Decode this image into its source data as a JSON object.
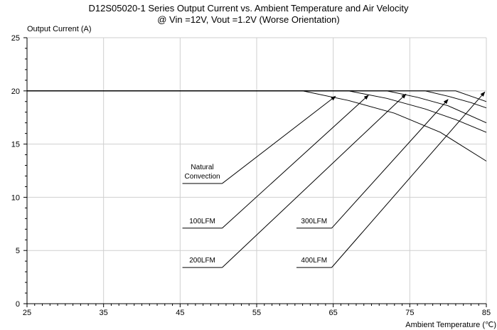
{
  "chart_data": {
    "type": "line",
    "title": "D12S05020-1 Series Output Current vs. Ambient Temperature and Air Velocity",
    "subtitle": "@ Vin =12V, Vout =1.2V (Worse Orientation)",
    "ylabel": "Output Current (A)",
    "xlabel": "Ambient Temperature (℃)",
    "xlim": [
      25,
      85
    ],
    "ylim": [
      0,
      25
    ],
    "x_ticks": [
      25,
      35,
      45,
      55,
      65,
      75,
      85
    ],
    "y_ticks": [
      0,
      5,
      10,
      15,
      20,
      25
    ],
    "grid": true,
    "series": [
      {
        "name": "Natural Convection",
        "points": [
          [
            25,
            20
          ],
          [
            61,
            20
          ],
          [
            67,
            19.1
          ],
          [
            73,
            17.9
          ],
          [
            79,
            16.1
          ],
          [
            85,
            13.4
          ]
        ]
      },
      {
        "name": "100LFM",
        "points": [
          [
            25,
            20
          ],
          [
            67,
            20
          ],
          [
            72,
            19.3
          ],
          [
            77,
            18.3
          ],
          [
            81,
            17.3
          ],
          [
            85,
            16.1
          ]
        ]
      },
      {
        "name": "200LFM",
        "points": [
          [
            25,
            20
          ],
          [
            72,
            20
          ],
          [
            76,
            19.4
          ],
          [
            80,
            18.6
          ],
          [
            85,
            17.0
          ]
        ]
      },
      {
        "name": "300LFM",
        "points": [
          [
            25,
            20
          ],
          [
            77,
            20
          ],
          [
            80,
            19.5
          ],
          [
            83,
            18.9
          ],
          [
            85,
            18.4
          ]
        ]
      },
      {
        "name": "400LFM",
        "points": [
          [
            25,
            20
          ],
          [
            81,
            20
          ],
          [
            83,
            19.5
          ],
          [
            85,
            19.0
          ]
        ]
      }
    ],
    "annotations": [
      {
        "label": "Natural Convection",
        "lines": [
          "Natural",
          "Convection"
        ],
        "x": 45.3,
        "y": 11.3,
        "x_end": 50.5,
        "arrow_to": [
          65.3,
          19.5
        ]
      },
      {
        "label": "100LFM",
        "lines": [
          "100LFM"
        ],
        "x": 45.3,
        "y": 7.1,
        "x_end": 50.5,
        "arrow_to": [
          69.6,
          19.6
        ]
      },
      {
        "label": "200LFM",
        "lines": [
          "200LFM"
        ],
        "x": 45.3,
        "y": 3.4,
        "x_end": 50.5,
        "arrow_to": [
          74.5,
          19.7
        ]
      },
      {
        "label": "300LFM",
        "lines": [
          "300LFM"
        ],
        "x": 60.2,
        "y": 7.1,
        "x_end": 64.8,
        "arrow_to": [
          80.0,
          19.2
        ]
      },
      {
        "label": "400LFM",
        "lines": [
          "400LFM"
        ],
        "x": 60.2,
        "y": 3.4,
        "x_end": 64.8,
        "arrow_to": [
          84.8,
          19.9
        ]
      }
    ]
  }
}
